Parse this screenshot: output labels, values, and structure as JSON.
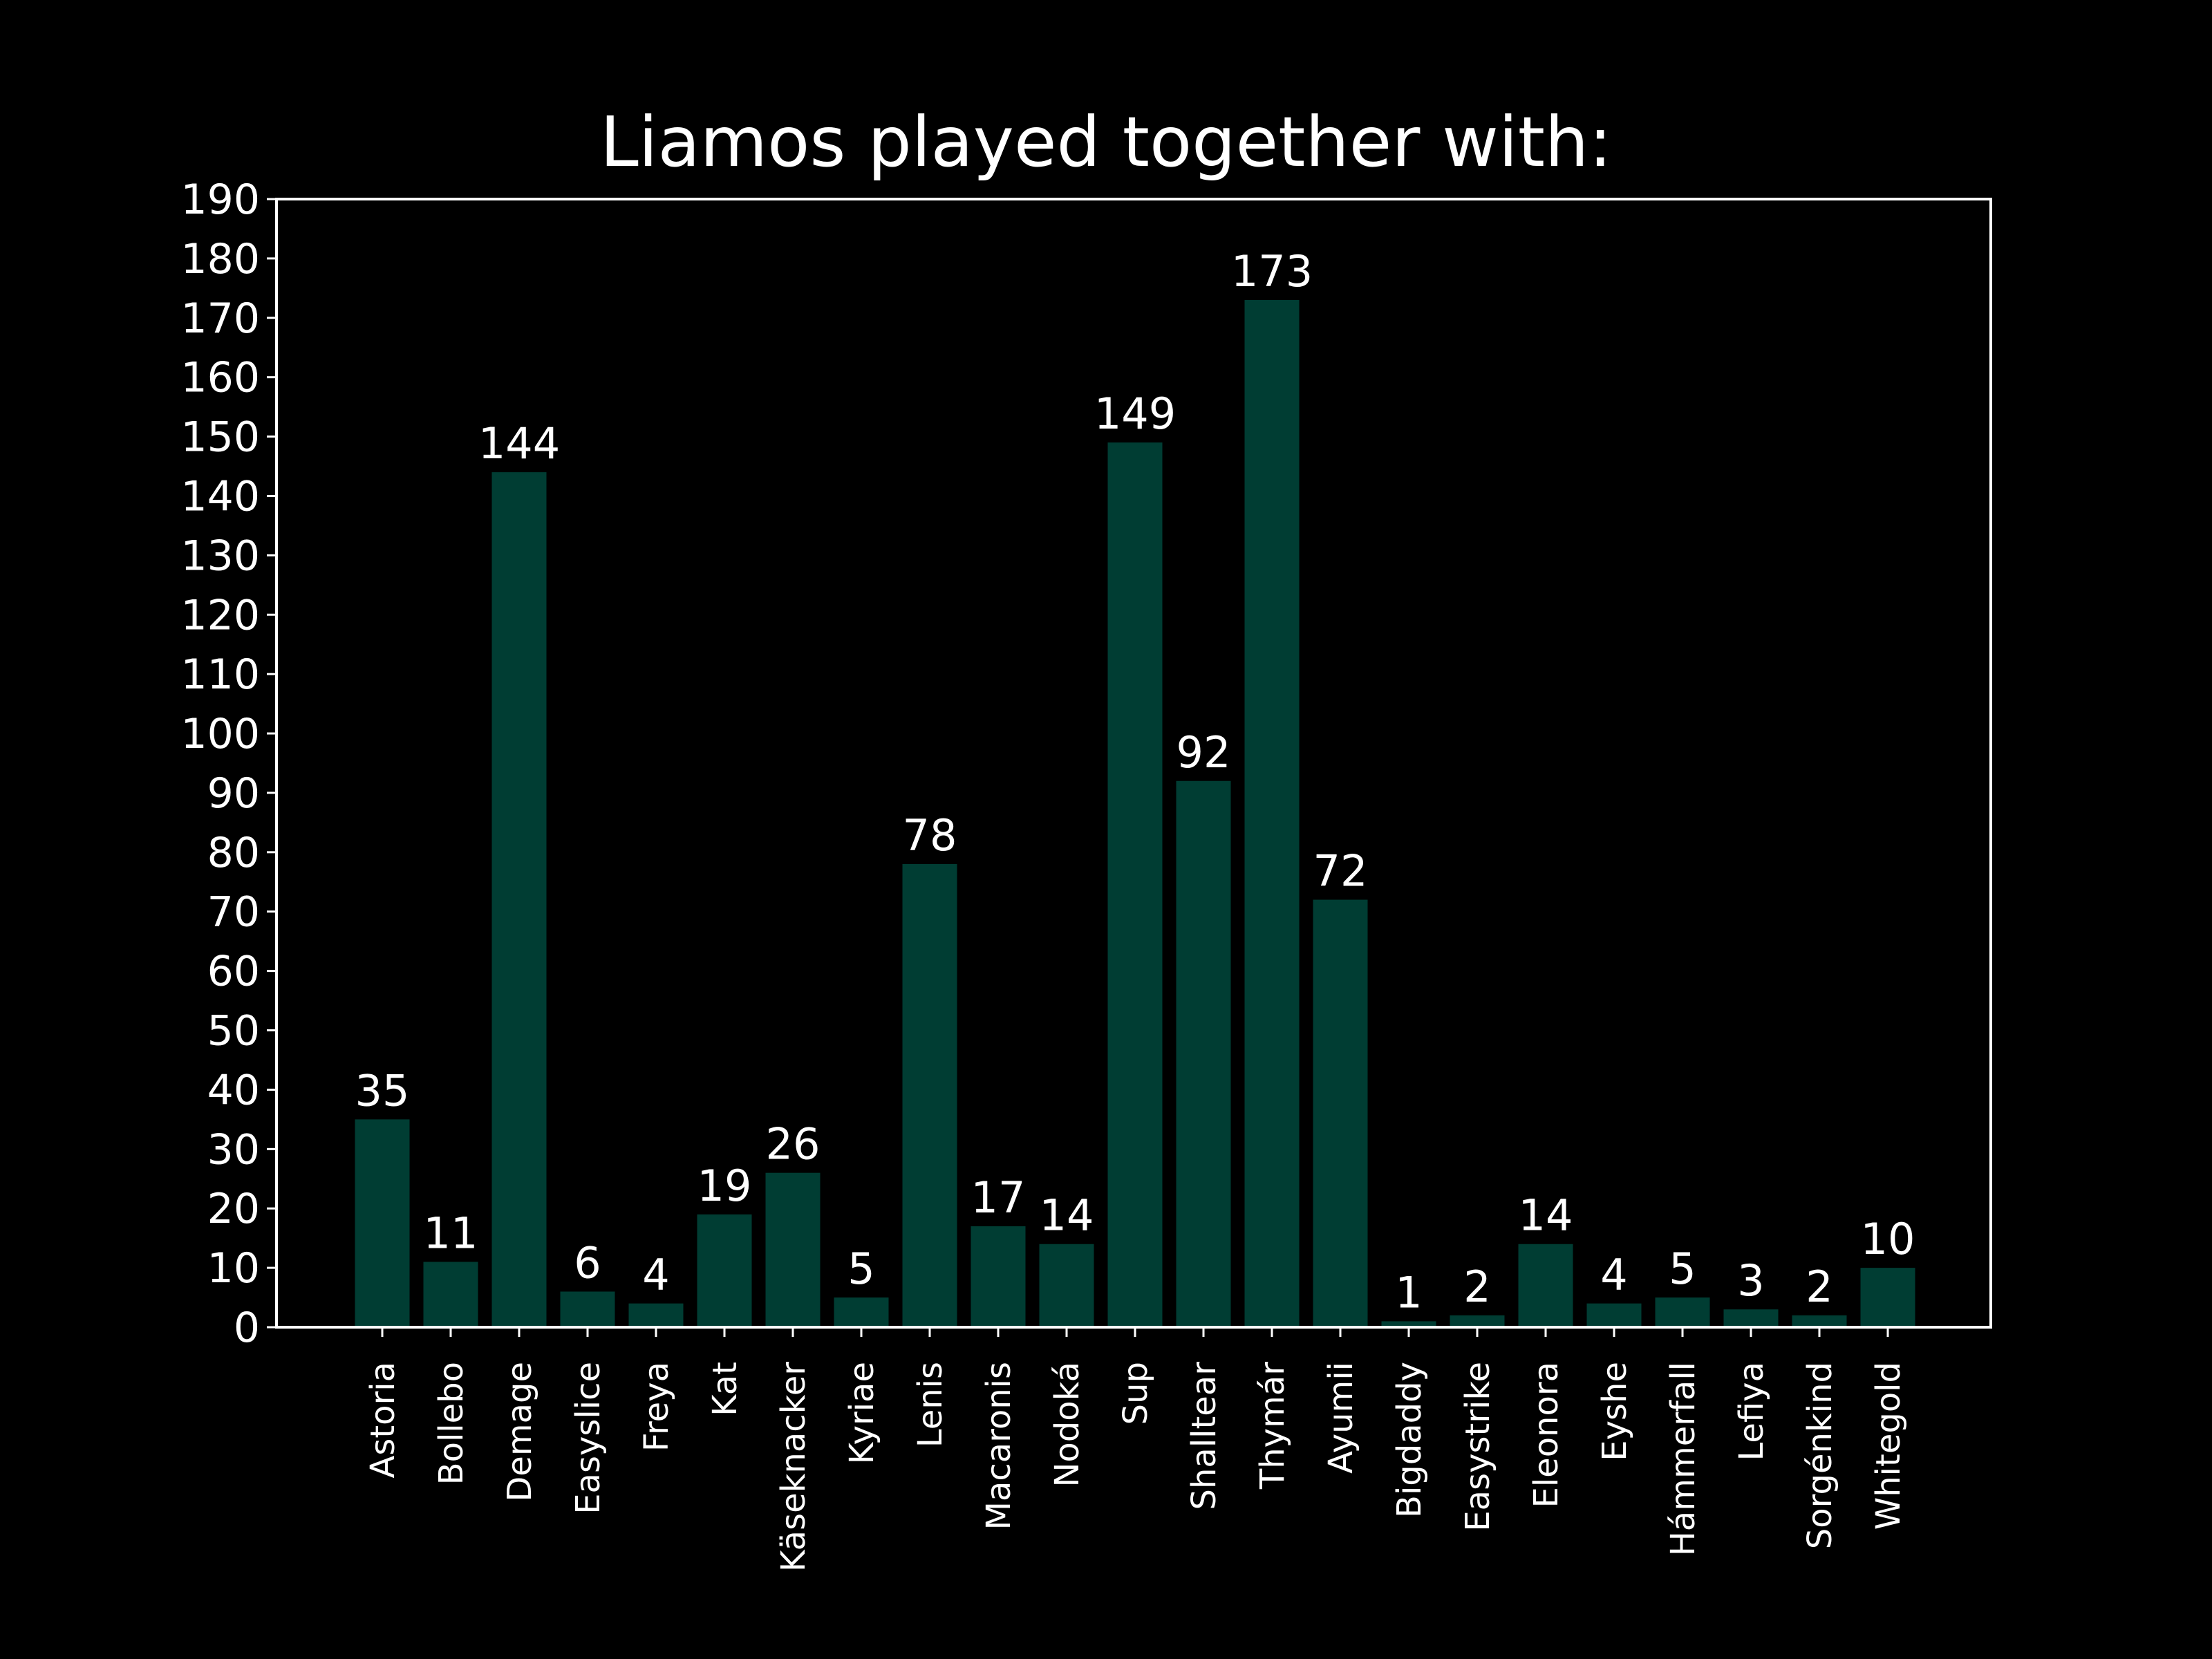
{
  "chart_data": {
    "type": "bar",
    "title": "Liamos played together with:",
    "xlabel": "",
    "ylabel": "",
    "categories": [
      "Astoria",
      "Bollebo",
      "Demage",
      "Easyslice",
      "Freya",
      "Kat",
      "Käseknacker",
      "Kyriae",
      "Lenis",
      "Macaronis",
      "Nodoká",
      "Sup",
      "Shalltear",
      "Thymár",
      "Ayumii",
      "Bigdaddy",
      "Easystrike",
      "Eleonora",
      "Eyshe",
      "Hámmerfall",
      "Lefiya",
      "Sorgénkind",
      "Whitegold"
    ],
    "values": [
      35,
      11,
      144,
      6,
      4,
      19,
      26,
      5,
      78,
      17,
      14,
      149,
      92,
      173,
      72,
      1,
      2,
      14,
      4,
      5,
      3,
      2,
      10
    ],
    "ylim": [
      0,
      190
    ],
    "yticks": [
      0,
      10,
      20,
      30,
      40,
      50,
      60,
      70,
      80,
      90,
      100,
      110,
      120,
      130,
      140,
      150,
      160,
      170,
      180,
      190
    ],
    "grid": false,
    "legend": "none",
    "bar_color": "#003d33",
    "background_color": "#000000",
    "text_color": "#ffffff"
  }
}
